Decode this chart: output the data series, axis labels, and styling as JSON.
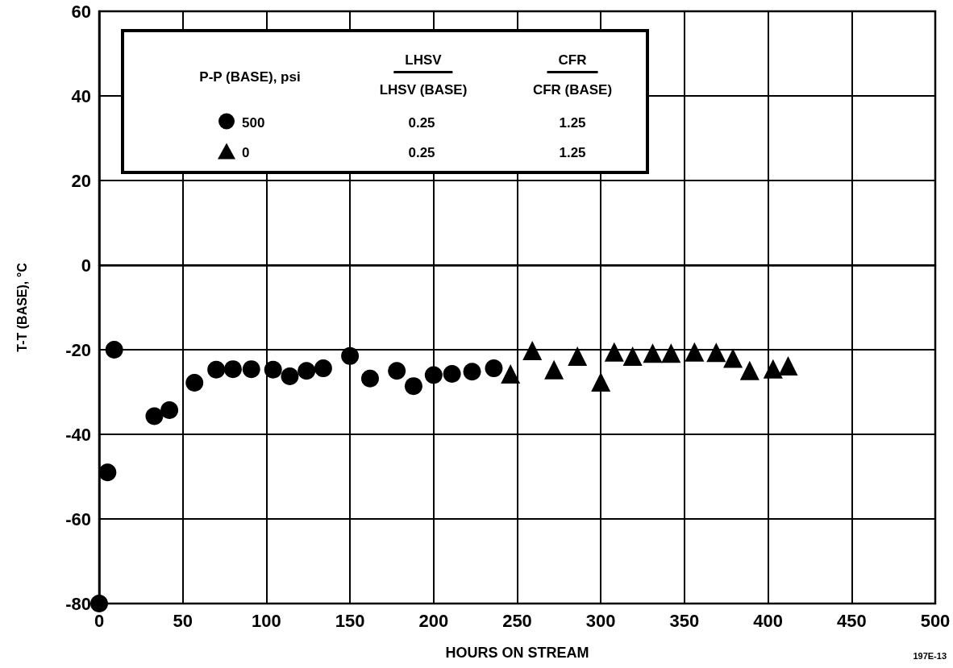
{
  "chart_data": {
    "type": "scatter",
    "xlabel": "HOURS ON STREAM",
    "ylabel": "T-T (BASE), °C",
    "legend_title": "P-P (BASE), psi",
    "annotations": [
      "LHSV",
      "LHSV (BASE)",
      "CFR",
      "CFR (BASE)",
      "0.25",
      "1.25",
      "0.25",
      "1.25",
      "197E-13"
    ],
    "xlim": [
      0,
      500
    ],
    "xticks": [
      0,
      50,
      100,
      150,
      200,
      250,
      300,
      350,
      400,
      450,
      500
    ],
    "ylim": [
      -80,
      60
    ],
    "yticks": [
      -80,
      -60,
      -40,
      -20,
      0,
      20,
      40,
      60
    ],
    "grid": true,
    "legend": "top left",
    "series": [
      {
        "name": "500",
        "color": "#000000",
        "marker": "circle",
        "x": [
          0,
          5,
          9,
          33,
          42,
          57,
          70,
          80,
          91,
          104,
          114,
          124,
          134,
          150,
          162,
          178,
          188,
          200,
          211,
          223,
          236
        ],
        "values": [
          -80,
          -49,
          -20,
          -35.7,
          -34.3,
          -27.8,
          -24.7,
          -24.6,
          -24.6,
          -24.7,
          -26.3,
          -25,
          -24.4,
          -21.5,
          -26.8,
          -25,
          -28.6,
          -26,
          -25.7,
          -25.2,
          -24.4
        ]
      },
      {
        "name": "0",
        "color": "#000000",
        "marker": "triangle",
        "x": [
          246,
          259,
          272,
          286,
          300,
          308,
          319,
          331,
          342,
          356,
          369,
          379,
          389,
          403,
          412
        ],
        "values": [
          -25.7,
          -20.2,
          -24.7,
          -21.5,
          -27.6,
          -20.5,
          -21.5,
          -20.8,
          -20.8,
          -20.5,
          -20.6,
          -22,
          -24.9,
          -24.5,
          -23.8
        ]
      }
    ]
  }
}
